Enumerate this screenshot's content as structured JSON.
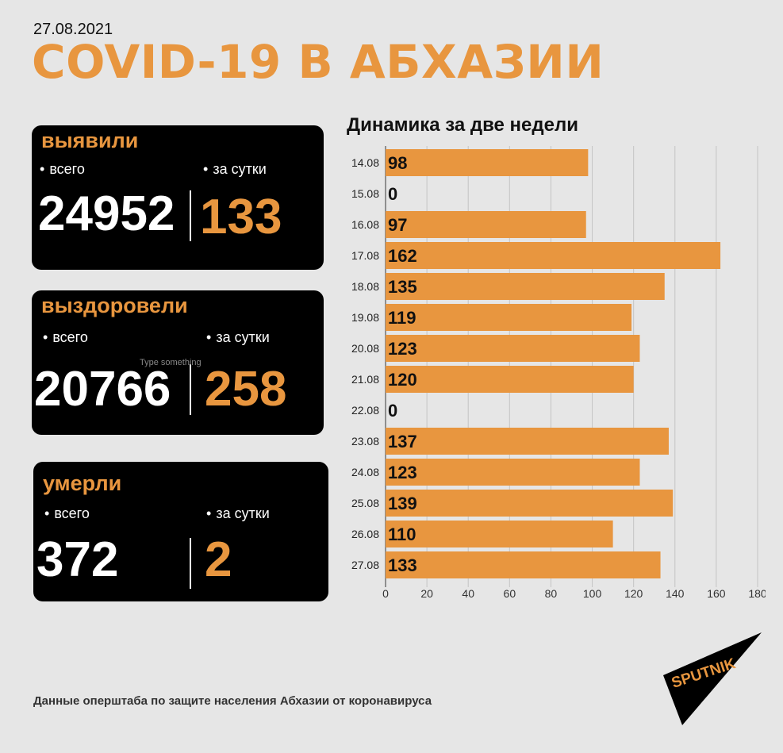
{
  "header": {
    "date": "27.08.2021",
    "title": "COVID-19 В АБХАЗИИ"
  },
  "cards": {
    "detected": {
      "heading": "выявили",
      "total_label": "всего",
      "daily_label": "за сутки",
      "total": "24952",
      "daily": "133"
    },
    "recovered": {
      "heading": "выздоровели",
      "total_label": "всего",
      "daily_label": "за сутки",
      "total": "20766",
      "daily": "258"
    },
    "died": {
      "heading": "умерли",
      "total_label": "всего",
      "daily_label": "за сутки",
      "total": "372",
      "daily": "2"
    }
  },
  "ghost_text": "Type something",
  "chart_title": "Динамика за две недели",
  "chart_data": {
    "type": "bar",
    "orientation": "horizontal",
    "categories": [
      "14.08",
      "15.08",
      "16.08",
      "17.08",
      "18.08",
      "19.08",
      "20.08",
      "21.08",
      "22.08",
      "23.08",
      "24.08",
      "25.08",
      "26.08",
      "27.08"
    ],
    "values": [
      98,
      0,
      97,
      162,
      135,
      119,
      123,
      120,
      0,
      137,
      123,
      139,
      110,
      133
    ],
    "xlim": [
      0,
      180
    ],
    "xticks": [
      "0",
      "20",
      "40",
      "60",
      "80",
      "100",
      "120",
      "140",
      "160",
      "180"
    ],
    "grid": true,
    "bar_color": "#e8963f"
  },
  "source": "Данные оперштаба по защите населения Абхазии от коронавируса",
  "logo_text": "SPUTNIK",
  "colors": {
    "accent": "#e8963f",
    "card_bg": "#000000",
    "page_bg": "#e6e6e6"
  }
}
